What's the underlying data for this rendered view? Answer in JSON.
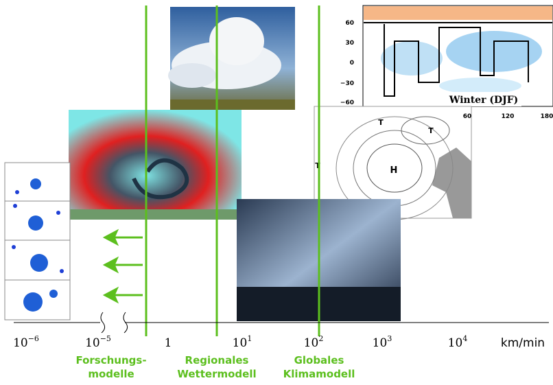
{
  "scale": {
    "ticks": [
      {
        "base": "10",
        "exp": "−6"
      },
      {
        "base": "10",
        "exp": "−5"
      },
      {
        "base": "1"
      },
      {
        "base": "10",
        "exp": "1"
      },
      {
        "base": "10",
        "exp": "2"
      },
      {
        "base": "10",
        "exp": "3"
      },
      {
        "base": "10",
        "exp": "4"
      }
    ],
    "unit": "km/min"
  },
  "models": [
    {
      "lines": [
        "Forschungs-",
        "modelle"
      ]
    },
    {
      "lines": [
        "Regionales",
        "Wettermodell"
      ]
    },
    {
      "lines": [
        "Globales",
        "Klimamodell"
      ]
    }
  ],
  "climate_map": {
    "lat_labels": [
      "60",
      "30",
      "0",
      "−30",
      "−60"
    ],
    "lon_labels": [
      "60",
      "120",
      "180"
    ],
    "caption": "Winter (DJF)"
  },
  "weather_map": {
    "labels": [
      "H",
      "T",
      "T",
      "T"
    ]
  }
}
